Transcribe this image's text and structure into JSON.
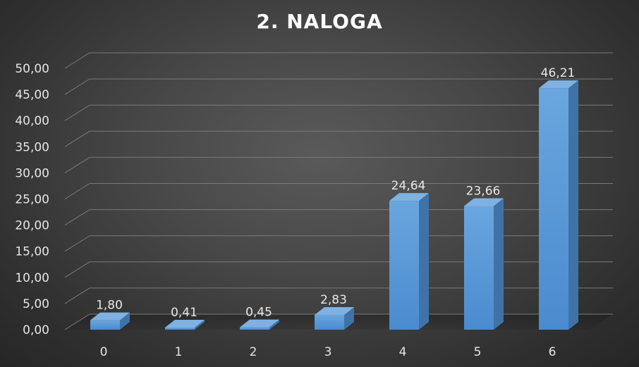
{
  "chart_data": {
    "type": "bar",
    "title": "2. NALOGA",
    "xlabel": "",
    "ylabel": "",
    "categories": [
      "0",
      "1",
      "2",
      "3",
      "4",
      "5",
      "6"
    ],
    "values": [
      1.8,
      0.41,
      0.45,
      2.83,
      24.64,
      23.66,
      46.21
    ],
    "value_labels": [
      "1,80",
      "0,41",
      "0,45",
      "2,83",
      "24,64",
      "23,66",
      "46,21"
    ],
    "ylim": [
      0,
      50
    ],
    "y_ticks": [
      0,
      5,
      10,
      15,
      20,
      25,
      30,
      35,
      40,
      45,
      50
    ],
    "y_tick_labels": [
      "0,00",
      "5,00",
      "10,00",
      "15,00",
      "20,00",
      "25,00",
      "30,00",
      "35,00",
      "40,00",
      "45,00",
      "50,00"
    ],
    "grid": true,
    "legend": "none",
    "style": "3d-column",
    "colors": {
      "bar_front": "#5b9bd5",
      "bar_side": "#3f73a8",
      "bar_top": "#7fb2e3",
      "grid": "#7a7a7a",
      "text": "#e6e6e6",
      "title": "#ffffff"
    }
  }
}
